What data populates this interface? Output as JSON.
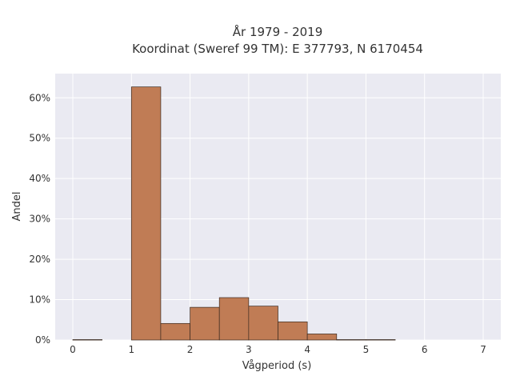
{
  "chart_data": {
    "type": "bar",
    "title_lines": [
      "År 1979 - 2019",
      "Koordinat (Sweref 99 TM): E 377793, N 6170454"
    ],
    "xlabel": "Vågperiod (s)",
    "ylabel": "Andel",
    "xlim": [
      -0.3,
      7.3
    ],
    "ylim": [
      0,
      0.66
    ],
    "x_ticks": [
      0,
      1,
      2,
      3,
      4,
      5,
      6,
      7
    ],
    "y_ticks": [
      0,
      0.1,
      0.2,
      0.3,
      0.4,
      0.5,
      0.6
    ],
    "y_tick_labels": [
      "0%",
      "10%",
      "20%",
      "30%",
      "40%",
      "50%",
      "60%"
    ],
    "grid": true,
    "bin_width": 0.5,
    "bins": [
      {
        "start": 0.0,
        "value": 0.001
      },
      {
        "start": 0.5,
        "value": 0.0
      },
      {
        "start": 1.0,
        "value": 0.627
      },
      {
        "start": 1.5,
        "value": 0.041
      },
      {
        "start": 2.0,
        "value": 0.081
      },
      {
        "start": 2.5,
        "value": 0.105
      },
      {
        "start": 3.0,
        "value": 0.084
      },
      {
        "start": 3.5,
        "value": 0.045
      },
      {
        "start": 4.0,
        "value": 0.015
      },
      {
        "start": 4.5,
        "value": 0.001
      },
      {
        "start": 5.0,
        "value": 0.001
      }
    ],
    "colors": {
      "bar_fill": "#c07c55",
      "bar_stroke": "#3a2a20",
      "plot_bg": "#eaeaf2",
      "grid": "#ffffff"
    }
  }
}
